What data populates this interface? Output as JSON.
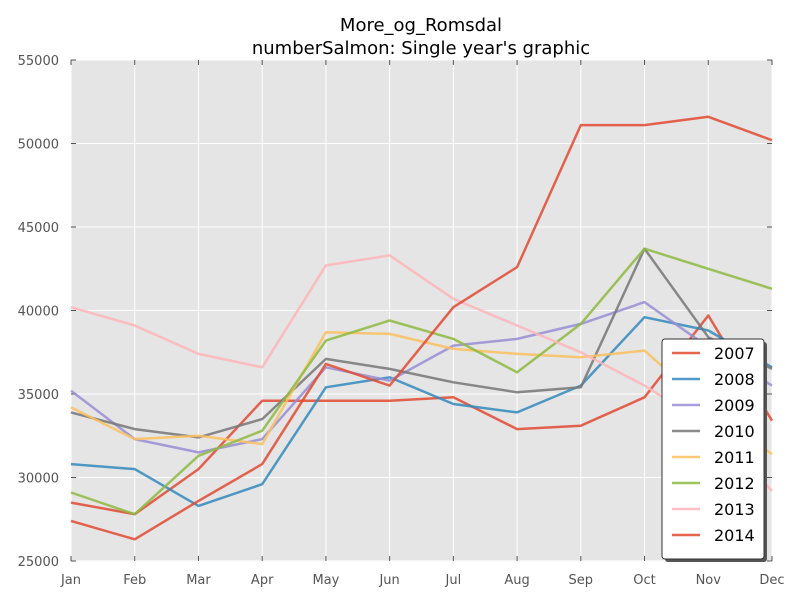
{
  "chart_data": {
    "type": "line",
    "title_line1": "More_og_Romsdal",
    "title_line2": "numberSalmon: Single year's graphic",
    "categories": [
      "Jan",
      "Feb",
      "Mar",
      "Apr",
      "May",
      "Jun",
      "Jul",
      "Aug",
      "Sep",
      "Oct",
      "Nov",
      "Dec"
    ],
    "ylim": [
      25000,
      55000
    ],
    "yticks": [
      25000,
      30000,
      35000,
      40000,
      45000,
      50000,
      55000
    ],
    "grid": true,
    "legend_position": "lower-right",
    "series": [
      {
        "name": "2007",
        "color": "#E24A33",
        "values": [
          28500,
          27800,
          30500,
          34600,
          34600,
          34600,
          34800,
          32900,
          33100,
          34800,
          39700,
          33400
        ]
      },
      {
        "name": "2008",
        "color": "#348ABD",
        "values": [
          30800,
          30500,
          28300,
          29600,
          35400,
          36000,
          34400,
          33900,
          35500,
          39600,
          38800,
          36600
        ]
      },
      {
        "name": "2009",
        "color": "#988ED5",
        "values": [
          35200,
          32300,
          31500,
          32300,
          36600,
          35800,
          37900,
          38300,
          39200,
          40500,
          37800,
          35500
        ]
      },
      {
        "name": "2010",
        "color": "#777777",
        "values": [
          33900,
          32900,
          32400,
          33500,
          37100,
          36500,
          35700,
          35100,
          35400,
          43700,
          38400,
          36500
        ]
      },
      {
        "name": "2011",
        "color": "#FBC15E",
        "values": [
          34200,
          32300,
          32500,
          32000,
          38700,
          38600,
          37700,
          37400,
          37200,
          37600,
          34200,
          31400
        ]
      },
      {
        "name": "2012",
        "color": "#8EBA42",
        "values": [
          29100,
          27800,
          31300,
          32800,
          38200,
          39400,
          38300,
          36300,
          39200,
          43700,
          42500,
          41300
        ]
      },
      {
        "name": "2013",
        "color": "#FFB5B8",
        "values": [
          40200,
          39100,
          37400,
          36600,
          42700,
          43300,
          40700,
          39100,
          37500,
          35500,
          33100,
          29200
        ]
      },
      {
        "name": "2014",
        "color": "#E24A33",
        "values": [
          27400,
          26300,
          28600,
          30800,
          36800,
          35500,
          40200,
          42600,
          51100,
          51100,
          51600,
          50200
        ]
      }
    ]
  }
}
